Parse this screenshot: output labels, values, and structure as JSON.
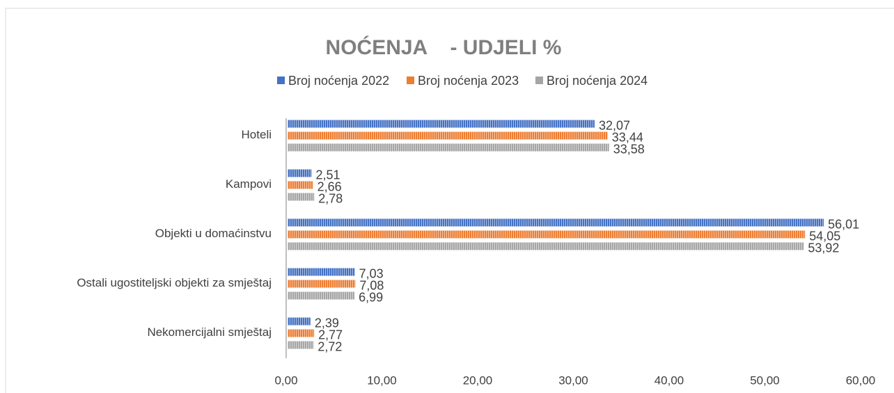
{
  "chart_data": {
    "type": "bar",
    "orientation": "horizontal",
    "title": "NOĆENJA    - UDJELI %",
    "categories": [
      "Hoteli",
      "Kampovi",
      "Objekti u domaćinstvu",
      "Ostali ugostiteljski objekti za smještaj",
      "Nekomercijalni smještaj"
    ],
    "series": [
      {
        "name": "Broj noćenja 2022",
        "color": "#4472c4",
        "values": [
          32.07,
          2.51,
          56.01,
          7.03,
          2.39
        ],
        "value_labels": [
          "32,07",
          "2,51",
          "56,01",
          "7,03",
          "2,39"
        ]
      },
      {
        "name": "Broj noćenja 2023",
        "color": "#ed7d31",
        "values": [
          33.44,
          2.66,
          54.05,
          7.08,
          2.77
        ],
        "value_labels": [
          "33,44",
          "2,66",
          "54,05",
          "7,08",
          "2,77"
        ]
      },
      {
        "name": "Broj noćenja 2024",
        "color": "#a5a5a5",
        "values": [
          33.58,
          2.78,
          53.92,
          6.99,
          2.72
        ],
        "value_labels": [
          "33,58",
          "2,78",
          "53,92",
          "6,99",
          "2,72"
        ]
      }
    ],
    "xlim": [
      0,
      60
    ],
    "xticks": [
      {
        "value": 0,
        "label": "0,00"
      },
      {
        "value": 10,
        "label": "10,00"
      },
      {
        "value": 20,
        "label": "20,00"
      },
      {
        "value": 30,
        "label": "30,00"
      },
      {
        "value": 40,
        "label": "40,00"
      },
      {
        "value": 50,
        "label": "50,00"
      },
      {
        "value": 60,
        "label": "60,00"
      }
    ],
    "legend": "top"
  }
}
